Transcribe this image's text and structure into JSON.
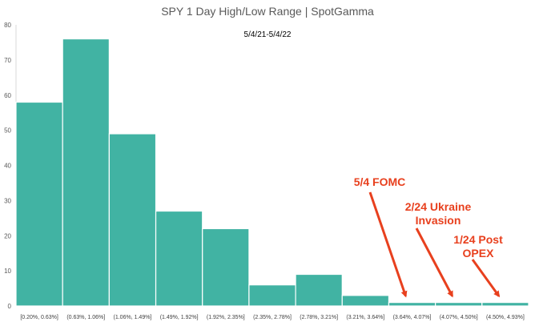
{
  "chart_data": {
    "type": "bar",
    "title": "SPY 1 Day High/Low Range | SpotGamma",
    "subtitle": "5/4/21-5/4/22",
    "categories": [
      "[0.20%, 0.63%]",
      "(0.63%, 1.06%]",
      "(1.06%, 1.49%]",
      "(1.49%, 1.92%]",
      "(1.92%, 2.35%]",
      "(2.35%, 2.78%]",
      "(2.78%, 3.21%]",
      "(3.21%, 3.64%]",
      "(3.64%, 4.07%]",
      "(4.07%, 4.50%]",
      "(4.50%, 4.93%]"
    ],
    "values": [
      58,
      76,
      49,
      27,
      22,
      6,
      9,
      3,
      1,
      1,
      1
    ],
    "ylim": [
      0,
      80
    ],
    "yticks": [
      0,
      10,
      20,
      30,
      40,
      50,
      60,
      70,
      80
    ],
    "grid": false,
    "bar_color": "#41b3a3",
    "annotations": [
      {
        "lines": [
          "5/4 FOMC"
        ],
        "target_category": "(3.64%, 4.07%]"
      },
      {
        "lines": [
          "2/24 Ukraine",
          "Invasion"
        ],
        "target_category": "(4.07%, 4.50%]"
      },
      {
        "lines": [
          "1/24 Post",
          "OPEX"
        ],
        "target_category": "(4.50%, 4.93%]"
      }
    ],
    "annotation_color": "#e8401e"
  }
}
